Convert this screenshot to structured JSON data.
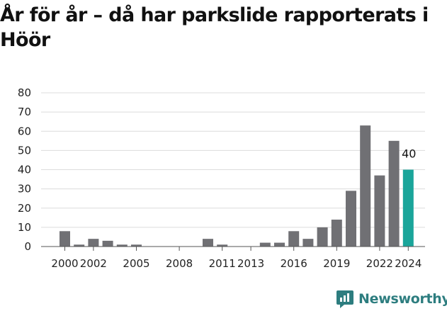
{
  "title": "År för år – då har parkslide rapporterats i Höör",
  "brand": {
    "name": "Newsworthy",
    "logo_icon": "newsworthy-chart-bubble-icon",
    "color": "#2d7d7f"
  },
  "chart_data": {
    "type": "bar",
    "x": [
      2000,
      2001,
      2002,
      2003,
      2004,
      2005,
      2006,
      2007,
      2008,
      2009,
      2010,
      2011,
      2012,
      2013,
      2014,
      2015,
      2016,
      2017,
      2018,
      2019,
      2020,
      2021,
      2022,
      2023,
      2024
    ],
    "values": [
      8,
      1,
      4,
      3,
      1,
      1,
      0,
      0,
      0,
      0,
      4,
      1,
      0,
      0,
      2,
      2,
      8,
      4,
      10,
      14,
      29,
      63,
      37,
      55,
      40
    ],
    "x_tick_labels": [
      "2000",
      "2002",
      "2005",
      "2008",
      "2011",
      "2013",
      "2016",
      "2019",
      "2022",
      "2024"
    ],
    "y_ticks": [
      0,
      10,
      20,
      30,
      40,
      50,
      60,
      70,
      80
    ],
    "ylim": [
      0,
      80
    ],
    "grid": true,
    "colors": {
      "bar": "#707074",
      "highlight": "#1aa59a"
    },
    "highlight_index": 24,
    "data_labels": [
      {
        "index": 24,
        "text": "40"
      }
    ],
    "xlabel": "",
    "ylabel": ""
  }
}
